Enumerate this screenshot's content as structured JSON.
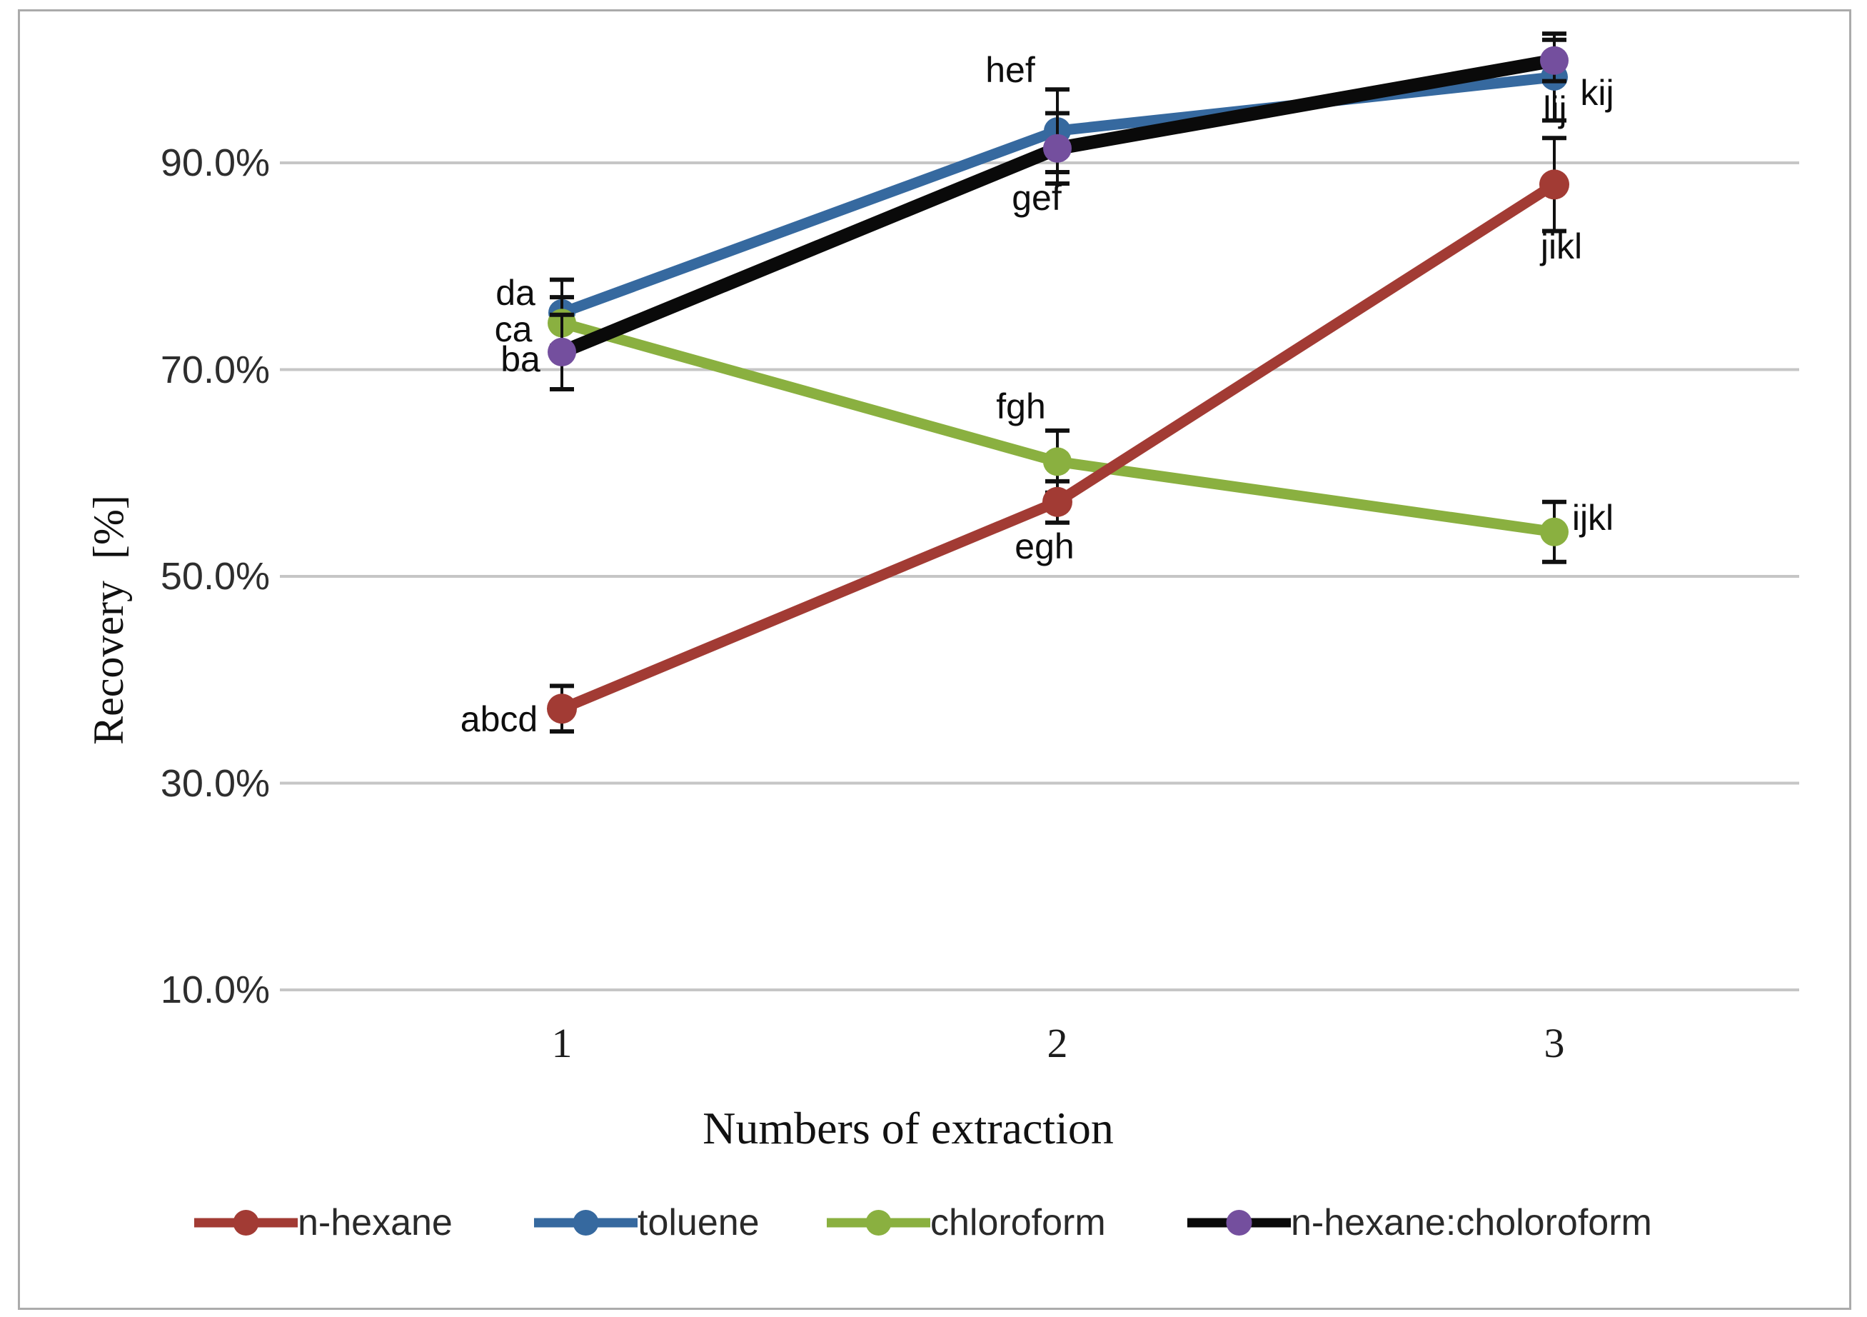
{
  "figure": {
    "background": "#ffffff",
    "border_color": "#ababab"
  },
  "chart_data": {
    "type": "line",
    "title": "",
    "xlabel": "Numbers of extraction",
    "ylabel": "Recovery  [%]",
    "categories": [
      "1",
      "2",
      "3"
    ],
    "x_values": [
      1,
      2,
      3
    ],
    "ylim": [
      10,
      102
    ],
    "grid": true,
    "legend_position": "bottom",
    "gridline_color": "#c6c6c6",
    "error_bar_color": "#101010",
    "yticks": [
      {
        "label": "90.0%",
        "value": 90
      },
      {
        "label": "70.0%",
        "value": 70
      },
      {
        "label": "50.0%",
        "value": 50
      },
      {
        "label": "30.0%",
        "value": 30
      },
      {
        "label": "10.0%",
        "value": 10
      }
    ],
    "series": [
      {
        "name": "n-hexane",
        "color": "#a23b34",
        "marker_color": "#a23b34",
        "values": [
          37.2,
          57.2,
          87.9
        ],
        "errors": [
          2.2,
          2.0,
          4.5
        ],
        "point_labels": [
          "abcd",
          "egh",
          "jikl"
        ],
        "z": 3
      },
      {
        "name": "toluene",
        "color": "#36699f",
        "marker_color": "#36699f",
        "values": [
          75.5,
          93.1,
          98.3
        ],
        "errors": [
          3.2,
          4.0,
          4.2
        ],
        "point_labels": [
          "da",
          "hef",
          "kij"
        ],
        "z": 1
      },
      {
        "name": "chloroform",
        "color": "#8ab040",
        "marker_color": "#8ab040",
        "values": [
          74.5,
          61.1,
          54.3
        ],
        "errors": [
          2.5,
          3.0,
          2.9
        ],
        "point_labels": [
          "ca",
          "fgh",
          "ijkl"
        ],
        "z": 2
      },
      {
        "name": "n-hexane:choloroform",
        "color": "#0a0a0a",
        "marker_color": "#744f9e",
        "values": [
          71.7,
          91.4,
          99.9
        ],
        "errors": [
          3.6,
          3.4,
          2.0
        ],
        "point_labels": [
          "ba",
          "gef",
          "lij"
        ],
        "z": 4
      }
    ],
    "layout_hints": {
      "label_offsets": [
        [
          [
            -88,
            15
          ],
          [
            -18,
            62
          ],
          [
            10,
            87
          ]
        ],
        [
          [
            -65,
            -28
          ],
          [
            -66,
            -85
          ],
          [
            60,
            22
          ]
        ],
        [
          [
            -68,
            9
          ],
          [
            -51,
            -77
          ],
          [
            54,
            -20
          ]
        ],
        [
          [
            -58,
            10
          ],
          [
            -29,
            69
          ],
          [
            1,
            68
          ]
        ]
      ],
      "note": "offsets index matches series order for n-hexane, toluene, chloroform, n-hexane:choloroform; chloroform x3 label below point; purple x3 label right-above"
    }
  }
}
